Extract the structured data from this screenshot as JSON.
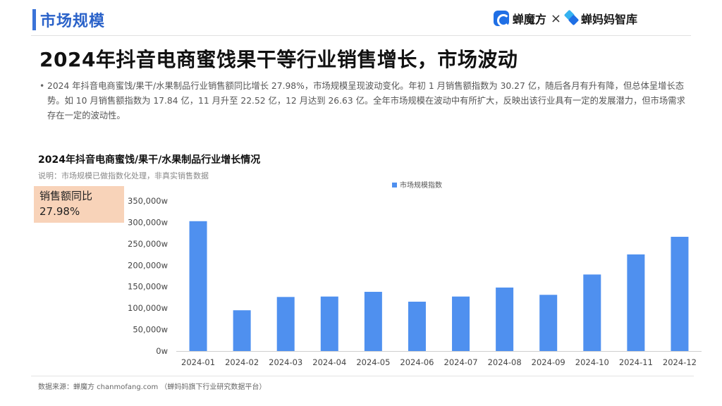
{
  "header": {
    "section_title": "市场规模",
    "brand_left": "蝉魔方",
    "brand_sep": "×",
    "brand_right": "蝉妈妈智库"
  },
  "main_title": "2024年抖音电商蜜饯果干等行业销售增长，市场波动",
  "description": "2024 年抖音电商蜜饯/果干/水果制品行业销售额同比增长 27.98%，市场规模呈现波动变化。年初 1 月销售额指数为 30.27 亿，随后各月有升有降，但总体呈增长态势。如 10 月销售额指数为 17.84 亿，11 月升至 22.52 亿，12 月达到 26.63 亿。全年市场规模在波动中有所扩大，反映出该行业具有一定的发展潜力，但市场需求存在一定的波动性。",
  "badge": {
    "label": "销售额同比",
    "value": "27.98%"
  },
  "chart_data": {
    "type": "bar",
    "title": "2024年抖音电商蜜饯/果干/水果制品行业增长情况",
    "subtitle": "说明：市场规模已做指数化处理，非真实销售数据",
    "categories": [
      "2024-01",
      "2024-02",
      "2024-03",
      "2024-04",
      "2024-05",
      "2024-06",
      "2024-07",
      "2024-08",
      "2024-09",
      "2024-10",
      "2024-11",
      "2024-12"
    ],
    "series": [
      {
        "name": "市场规模指数",
        "color": "#4f90ef",
        "values": [
          302700,
          95000,
          126000,
          127000,
          138000,
          115000,
          127000,
          148000,
          131000,
          178400,
          225200,
          266300
        ]
      }
    ],
    "y_ticks": [
      "0w",
      "50,000w",
      "100,000w",
      "150,000w",
      "200,000w",
      "250,000w",
      "300,000w",
      "350,000w"
    ],
    "ylim": [
      0,
      350000
    ],
    "legend_position": "top-center",
    "grid": false
  },
  "footer": {
    "source": "数据来源：蝉魔方 chanmofang.com （蝉妈妈旗下行业研究数据平台）"
  }
}
